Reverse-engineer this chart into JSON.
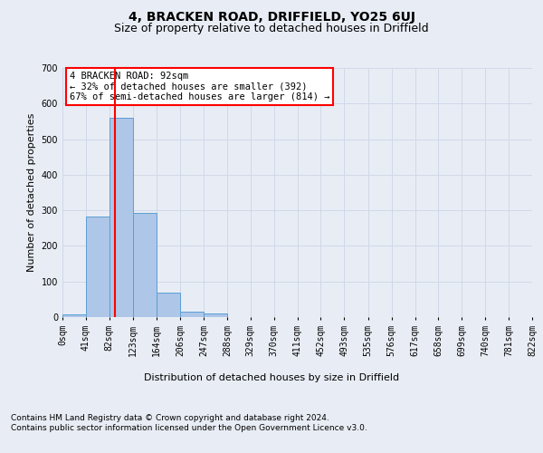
{
  "title": "4, BRACKEN ROAD, DRIFFIELD, YO25 6UJ",
  "subtitle": "Size of property relative to detached houses in Driffield",
  "xlabel": "Distribution of detached houses by size in Driffield",
  "ylabel": "Number of detached properties",
  "bar_values": [
    8,
    282,
    560,
    293,
    68,
    15,
    10,
    0,
    0,
    0,
    0,
    0,
    0,
    0,
    0,
    0,
    0,
    0,
    0,
    0
  ],
  "bin_edges": [
    0,
    41,
    82,
    123,
    164,
    206,
    247,
    288,
    329,
    370,
    411,
    452,
    493,
    535,
    576,
    617,
    658,
    699,
    740,
    781,
    822
  ],
  "tick_labels": [
    "0sqm",
    "41sqm",
    "82sqm",
    "123sqm",
    "164sqm",
    "206sqm",
    "247sqm",
    "288sqm",
    "329sqm",
    "370sqm",
    "411sqm",
    "452sqm",
    "493sqm",
    "535sqm",
    "576sqm",
    "617sqm",
    "658sqm",
    "699sqm",
    "740sqm",
    "781sqm",
    "822sqm"
  ],
  "bar_color": "#aec6e8",
  "bar_edge_color": "#5a9fd4",
  "grid_color": "#d0d8e8",
  "background_color": "#e8edf5",
  "vline_x": 92,
  "vline_color": "red",
  "annotation_text": "4 BRACKEN ROAD: 92sqm\n← 32% of detached houses are smaller (392)\n67% of semi-detached houses are larger (814) →",
  "annotation_box_color": "white",
  "annotation_border_color": "red",
  "ylim": [
    0,
    700
  ],
  "yticks": [
    0,
    100,
    200,
    300,
    400,
    500,
    600,
    700
  ],
  "footer_text": "Contains HM Land Registry data © Crown copyright and database right 2024.\nContains public sector information licensed under the Open Government Licence v3.0.",
  "title_fontsize": 10,
  "subtitle_fontsize": 9,
  "axis_label_fontsize": 8,
  "tick_fontsize": 7,
  "annotation_fontsize": 7.5,
  "footer_fontsize": 6.5
}
